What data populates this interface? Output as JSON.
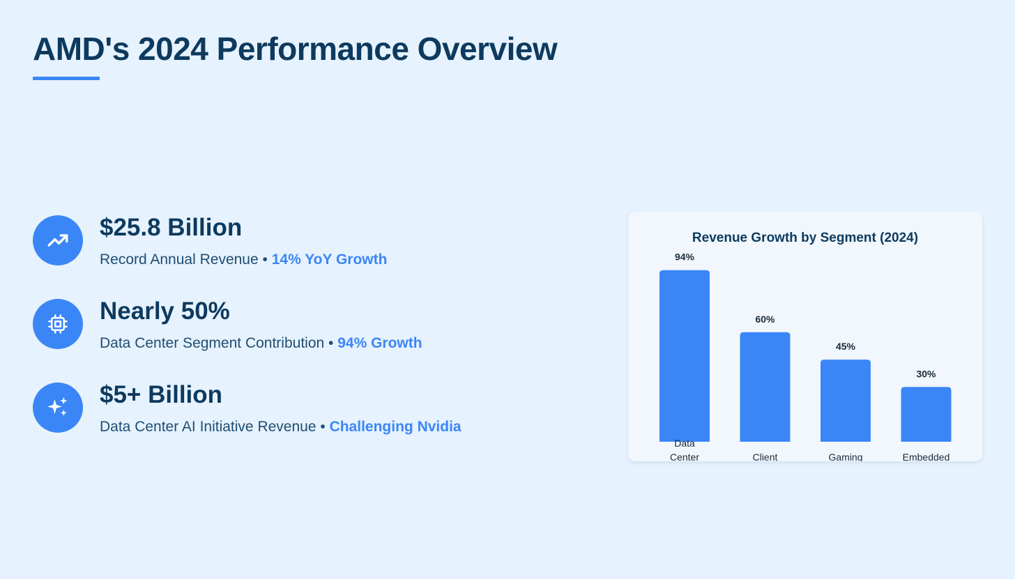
{
  "header": {
    "title": "AMD's 2024 Performance Overview"
  },
  "stats": [
    {
      "icon": "trending-up-icon",
      "value": "$25.8 Billion",
      "description": "Record Annual Revenue",
      "separator": "•",
      "highlight": "14% YoY Growth"
    },
    {
      "icon": "cpu-chip-icon",
      "value": "Nearly 50%",
      "description": "Data Center Segment Contribution",
      "separator": "•",
      "highlight": "94% Growth"
    },
    {
      "icon": "sparkles-icon",
      "value": "$5+ Billion",
      "description": "Data Center AI Initiative Revenue",
      "separator": "•",
      "highlight": "Challenging Nvidia"
    }
  ],
  "colors": {
    "accent": "#3b86f7",
    "heading": "#0d3a5e",
    "background": "#e6f2fd"
  },
  "chart_data": {
    "type": "bar",
    "title": "Revenue Growth by Segment (2024)",
    "categories": [
      "Data Center",
      "Client",
      "Gaming",
      "Embedded"
    ],
    "values": [
      94,
      60,
      45,
      30
    ],
    "data_labels": [
      "94%",
      "60%",
      "45%",
      "30%"
    ],
    "xlabel": "",
    "ylabel": "",
    "ylim": [
      0,
      100
    ],
    "grid": false,
    "legend": "none",
    "bar_color": "#3b86f7"
  }
}
